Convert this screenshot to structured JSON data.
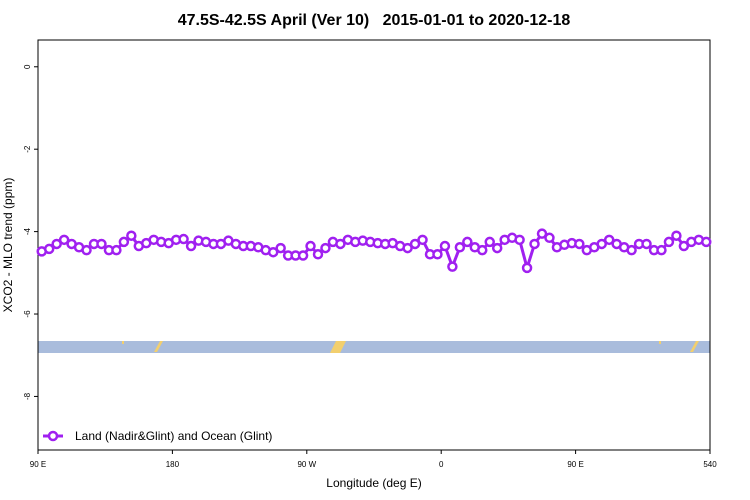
{
  "chart_data": {
    "type": "line",
    "title": "47.5S-42.5S April (Ver 10)   2015-01-01 to 2020-12-18",
    "x_label": "Longitude (deg E)",
    "y_label": "XCO2 - MLO trend (ppm)",
    "x": [
      92.5,
      97.5,
      102.5,
      107.5,
      112.5,
      117.5,
      122.5,
      127.5,
      132.5,
      137.5,
      142.5,
      147.5,
      152.5,
      157.5,
      162.5,
      167.5,
      172.5,
      177.5,
      182.5,
      187.5,
      192.5,
      197.5,
      202.5,
      207.5,
      212.5,
      217.5,
      222.5,
      227.5,
      232.5,
      237.5,
      242.5,
      247.5,
      252.5,
      257.5,
      262.5,
      267.5,
      272.5,
      277.5,
      282.5,
      287.5,
      292.5,
      297.5,
      302.5,
      307.5,
      312.5,
      317.5,
      322.5,
      327.5,
      332.5,
      337.5,
      342.5,
      347.5,
      352.5,
      357.5,
      362.5,
      367.5,
      372.5,
      377.5,
      382.5,
      387.5,
      392.5,
      397.5,
      402.5,
      407.5,
      412.5,
      417.5,
      422.5,
      427.5,
      432.5,
      437.5,
      442.5,
      447.5,
      452.5,
      457.5,
      462.5,
      467.5,
      472.5,
      477.5,
      482.5,
      487.5,
      492.5,
      497.5,
      502.5,
      507.5,
      512.5,
      517.5,
      522.5,
      527.5,
      532.5,
      537.5
    ],
    "series": [
      {
        "name": "Land (Nadir&Glint) and Ocean (Glint)",
        "color": "#a020f0",
        "values": [
          -4.48,
          -4.42,
          -4.3,
          -4.2,
          -4.3,
          -4.38,
          -4.45,
          -4.3,
          -4.3,
          -4.45,
          -4.45,
          -4.25,
          -4.1,
          -4.35,
          -4.28,
          -4.2,
          -4.25,
          -4.28,
          -4.2,
          -4.18,
          -4.35,
          -4.22,
          -4.25,
          -4.3,
          -4.3,
          -4.22,
          -4.3,
          -4.35,
          -4.35,
          -4.38,
          -4.45,
          -4.5,
          -4.4,
          -4.58,
          -4.58,
          -4.58,
          -4.35,
          -4.55,
          -4.4,
          -4.25,
          -4.3,
          -4.2,
          -4.25,
          -4.22,
          -4.25,
          -4.28,
          -4.3,
          -4.28,
          -4.35,
          -4.4,
          -4.3,
          -4.2,
          -4.55,
          -4.55,
          -4.35,
          -4.85,
          -4.38,
          -4.25,
          -4.38,
          -4.45,
          -4.25,
          -4.4,
          -4.2,
          -4.15,
          -4.2,
          -4.88,
          -4.3,
          -4.05,
          -4.15,
          -4.38,
          -4.32,
          -4.28,
          -4.3,
          -4.45,
          -4.38,
          -4.3,
          -4.2,
          -4.3,
          -4.38,
          -4.45,
          -4.3,
          -4.3,
          -4.45,
          -4.45,
          -4.25,
          -4.1,
          -4.35,
          -4.25,
          -4.2,
          -4.25
        ]
      }
    ],
    "xlim": [
      90,
      540
    ],
    "xticks": [
      {
        "value": 90,
        "label": "90 E"
      },
      180,
      {
        "value": 270,
        "label": "90 W"
      },
      {
        "value": 360,
        "label": "0"
      },
      {
        "value": 450,
        "label": "90 E"
      },
      540
    ],
    "ylim": [
      -9.3,
      0.65
    ],
    "yticks": [
      0,
      -2,
      -4,
      -6,
      -8
    ],
    "legend": "bottom-left"
  }
}
